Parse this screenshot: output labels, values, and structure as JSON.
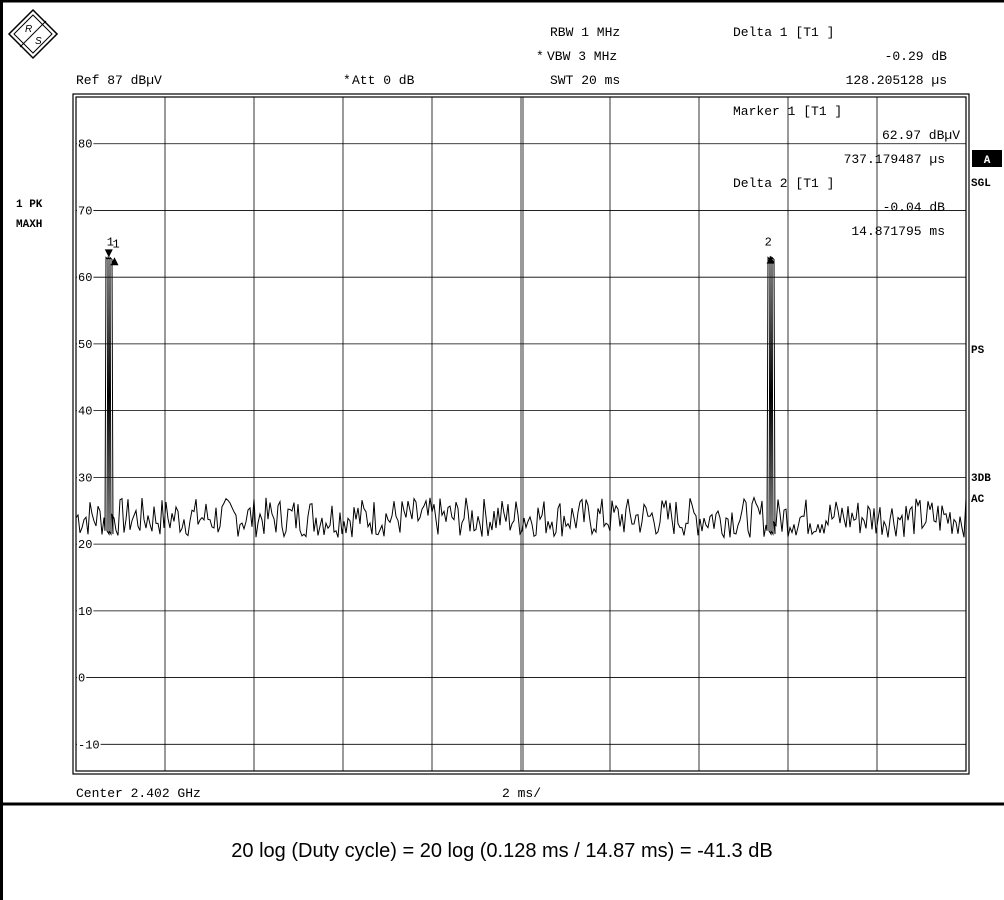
{
  "header": {
    "ref": "Ref  87 dBµV",
    "att_star": "*",
    "att": "Att  0 dB",
    "rbw": "RBW  1 MHz",
    "vbw_star": "*",
    "vbw": "VBW  3 MHz",
    "swt": "SWT  20 ms",
    "delta1_title": "Delta 1 [T1 ]",
    "delta1_level": "-0.29 dB",
    "delta1_time": "128.205128 µs"
  },
  "marker_box": {
    "marker1_title": "Marker 1 [T1 ]",
    "marker1_level": "62.97 dBµV",
    "marker1_time": "737.179487 µs",
    "delta2_title": "Delta 2 [T1 ]",
    "delta2_level": "-0.04 dB",
    "delta2_time": "14.871795 ms"
  },
  "left_labels": {
    "trace_mode": "1 PK",
    "trace_hold": "MAXH"
  },
  "right_labels": {
    "a_badge": "A",
    "sgl": "SGL",
    "ps": "PS",
    "db3": "3DB",
    "ac": "AC"
  },
  "bottom": {
    "center": "Center 2.402 GHz",
    "span": "2 ms/"
  },
  "footer": {
    "formula": "20 log (Duty cycle) = 20 log (0.128 ms / 14.87 ms) = -41.3 dB"
  },
  "colors": {
    "ink": "#000000",
    "grid": "#000000",
    "background": "#ffffff"
  },
  "icons": {
    "logo": "rohde-schwarz-diamond-logo"
  },
  "chart_data": {
    "type": "line",
    "title": "",
    "xlabel": "",
    "ylabel": "",
    "xlim": [
      0,
      20
    ],
    "ylim": [
      -14,
      87
    ],
    "x_unit": "ms",
    "y_unit": "dBµV",
    "yticks": [
      -10,
      0,
      10,
      20,
      30,
      40,
      50,
      60,
      70,
      80
    ],
    "ytick_labels": [
      "-10",
      "0",
      "10",
      "20",
      "30",
      "40",
      "50",
      "60",
      "70",
      "80"
    ],
    "grid": true,
    "noise_floor": 24,
    "noise_range": [
      21,
      27
    ],
    "series": [
      {
        "x": [
          0.0,
          0.2,
          0.4,
          0.6,
          0.737,
          0.8,
          1.0,
          2.0,
          4.0,
          6.0,
          8.0,
          10.0,
          12.0,
          14.0,
          15.0,
          15.2,
          15.4,
          15.609,
          15.7,
          16.0,
          18.0,
          20.0
        ],
        "values": [
          23.5,
          24.8,
          22.9,
          24.1,
          62.97,
          22.5,
          24.6,
          23.9,
          24.3,
          23.1,
          24.7,
          23.6,
          24.2,
          23.8,
          24.5,
          23.2,
          25.0,
          62.93,
          22.8,
          24.4,
          23.7,
          24.1
        ]
      }
    ],
    "markers": [
      {
        "label": "1",
        "x": 0.737,
        "y": 62.97,
        "symbol": "triangle-down"
      },
      {
        "label": "1",
        "x": 0.865,
        "y": 62.68,
        "symbol": "triangle-up"
      },
      {
        "label": "2",
        "x": 15.609,
        "y": 62.93,
        "symbol": "triangle-up"
      }
    ]
  }
}
